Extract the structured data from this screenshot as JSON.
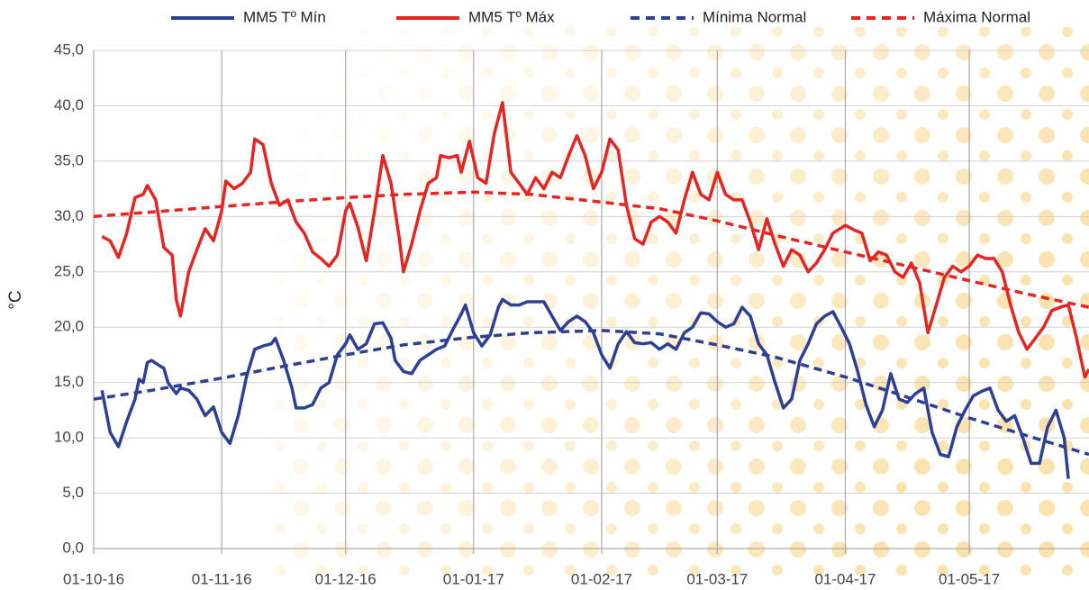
{
  "chart_data": {
    "type": "line",
    "y_label": "°C",
    "xlim": [
      "2016-10-01",
      "2017-05-30"
    ],
    "xticks": [
      {
        "value": "2016-10-01",
        "label": "01-10-16"
      },
      {
        "value": "2016-11-01",
        "label": "01-11-16"
      },
      {
        "value": "2016-12-01",
        "label": "01-12-16"
      },
      {
        "value": "2017-01-01",
        "label": "01-01-17"
      },
      {
        "value": "2017-02-01",
        "label": "01-02-17"
      },
      {
        "value": "2017-03-01",
        "label": "01-03-17"
      },
      {
        "value": "2017-04-01",
        "label": "01-04-17"
      },
      {
        "value": "2017-05-01",
        "label": "01-05-17"
      }
    ],
    "ylim": [
      0,
      45
    ],
    "yticks": [
      {
        "value": 0,
        "label": "0,0"
      },
      {
        "value": 5,
        "label": "5,0"
      },
      {
        "value": 10,
        "label": "10,0"
      },
      {
        "value": 15,
        "label": "15,0"
      },
      {
        "value": 20,
        "label": "20,0"
      },
      {
        "value": 25,
        "label": "25,0"
      },
      {
        "value": 30,
        "label": "30,0"
      },
      {
        "value": 35,
        "label": "35,0"
      },
      {
        "value": 40,
        "label": "40,0"
      },
      {
        "value": 45,
        "label": "45,0"
      }
    ],
    "grid": true,
    "legend": "top",
    "series": [
      {
        "name": "MM5 Tº Mín",
        "color": "#2e3f94",
        "dash": false,
        "x": [
          "2016-10-03",
          "2016-10-05",
          "2016-10-07",
          "2016-10-09",
          "2016-10-11",
          "2016-10-12",
          "2016-10-13",
          "2016-10-14",
          "2016-10-15",
          "2016-10-17",
          "2016-10-18",
          "2016-10-19",
          "2016-10-21",
          "2016-10-22",
          "2016-10-24",
          "2016-10-26",
          "2016-10-28",
          "2016-10-30",
          "2016-11-01",
          "2016-11-03",
          "2016-11-05",
          "2016-11-07",
          "2016-11-09",
          "2016-11-11",
          "2016-11-13",
          "2016-11-14",
          "2016-11-16",
          "2016-11-18",
          "2016-11-19",
          "2016-11-21",
          "2016-11-23",
          "2016-11-25",
          "2016-11-27",
          "2016-11-29",
          "2016-12-01",
          "2016-12-02",
          "2016-12-04",
          "2016-12-06",
          "2016-12-08",
          "2016-12-10",
          "2016-12-12",
          "2016-12-13",
          "2016-12-15",
          "2016-12-17",
          "2016-12-19",
          "2016-12-21",
          "2016-12-23",
          "2016-12-25",
          "2016-12-27",
          "2016-12-29",
          "2016-12-30",
          "2017-01-01",
          "2017-01-03",
          "2017-01-05",
          "2017-01-07",
          "2017-01-08",
          "2017-01-10",
          "2017-01-12",
          "2017-01-14",
          "2017-01-16",
          "2017-01-18",
          "2017-01-20",
          "2017-01-22",
          "2017-01-24",
          "2017-01-26",
          "2017-01-28",
          "2017-01-30",
          "2017-02-01",
          "2017-02-03",
          "2017-02-05",
          "2017-02-07",
          "2017-02-09",
          "2017-02-11",
          "2017-02-13",
          "2017-02-15",
          "2017-02-17",
          "2017-02-19",
          "2017-02-21",
          "2017-02-23",
          "2017-02-25",
          "2017-02-27",
          "2017-03-01",
          "2017-03-03",
          "2017-03-05",
          "2017-03-07",
          "2017-03-09",
          "2017-03-11",
          "2017-03-13",
          "2017-03-15",
          "2017-03-17",
          "2017-03-19",
          "2017-03-21",
          "2017-03-23",
          "2017-03-25",
          "2017-03-27",
          "2017-03-29",
          "2017-03-31",
          "2017-04-02",
          "2017-04-04",
          "2017-04-06",
          "2017-04-08",
          "2017-04-10",
          "2017-04-12",
          "2017-04-14",
          "2017-04-16",
          "2017-04-18",
          "2017-04-20",
          "2017-04-22",
          "2017-04-24",
          "2017-04-26",
          "2017-04-28",
          "2017-04-30",
          "2017-05-02",
          "2017-05-04",
          "2017-05-06",
          "2017-05-08",
          "2017-05-10",
          "2017-05-12",
          "2017-05-14",
          "2017-05-16",
          "2017-05-18",
          "2017-05-20",
          "2017-05-22",
          "2017-05-24",
          "2017-05-25"
        ],
        "values": [
          14.3,
          10.5,
          9.2,
          11.5,
          13.5,
          15.3,
          15,
          16.8,
          17,
          16.5,
          16.3,
          15,
          14,
          14.5,
          14.3,
          13.5,
          12,
          12.8,
          10.5,
          9.5,
          12,
          15.5,
          18,
          18.3,
          18.5,
          19,
          17,
          14.5,
          12.7,
          12.7,
          13,
          14.5,
          15,
          17.5,
          18.5,
          19.3,
          18,
          18.5,
          20.3,
          20.4,
          19,
          17,
          16,
          15.8,
          17,
          17.5,
          18,
          18.3,
          19.8,
          21.2,
          22,
          19.5,
          18.3,
          19.3,
          21.8,
          22.5,
          22,
          22,
          22.3,
          22.3,
          22.3,
          21,
          19.7,
          20.5,
          21,
          20.5,
          19.5,
          17.5,
          16.3,
          18.5,
          19.6,
          18.6,
          18.5,
          18.6,
          18,
          18.5,
          18,
          19.5,
          20,
          21.3,
          21.2,
          20.5,
          20,
          20.3,
          21.8,
          21,
          18.5,
          17.5,
          15,
          12.7,
          13.5,
          17,
          18.5,
          20.3,
          21,
          21.4,
          20,
          18.5,
          16,
          13,
          11,
          12.5,
          15.8,
          13.5,
          13.2,
          14,
          14.5,
          10.5,
          8.5,
          8.3,
          11,
          12.5,
          13.8,
          14.2,
          14.5,
          12.5,
          11.5,
          12,
          10,
          7.7,
          7.7,
          11,
          12.5,
          10,
          6.3
        ]
      },
      {
        "name": "MM5 Tº Máx",
        "color": "#e52521",
        "dash": false,
        "x": [
          "2016-10-03",
          "2016-10-05",
          "2016-10-07",
          "2016-10-09",
          "2016-10-11",
          "2016-10-13",
          "2016-10-14",
          "2016-10-16",
          "2016-10-18",
          "2016-10-20",
          "2016-10-21",
          "2016-10-22",
          "2016-10-24",
          "2016-10-26",
          "2016-10-28",
          "2016-10-30",
          "2016-11-01",
          "2016-11-02",
          "2016-11-04",
          "2016-11-06",
          "2016-11-08",
          "2016-11-09",
          "2016-11-11",
          "2016-11-13",
          "2016-11-15",
          "2016-11-17",
          "2016-11-19",
          "2016-11-21",
          "2016-11-23",
          "2016-11-25",
          "2016-11-27",
          "2016-11-29",
          "2016-12-01",
          "2016-12-02",
          "2016-12-04",
          "2016-12-06",
          "2016-12-08",
          "2016-12-10",
          "2016-12-12",
          "2016-12-14",
          "2016-12-15",
          "2016-12-17",
          "2016-12-19",
          "2016-12-21",
          "2016-12-23",
          "2016-12-24",
          "2016-12-26",
          "2016-12-28",
          "2016-12-29",
          "2016-12-31",
          "2017-01-02",
          "2017-01-04",
          "2017-01-06",
          "2017-01-08",
          "2017-01-10",
          "2017-01-12",
          "2017-01-14",
          "2017-01-16",
          "2017-01-18",
          "2017-01-20",
          "2017-01-22",
          "2017-01-24",
          "2017-01-26",
          "2017-01-28",
          "2017-01-30",
          "2017-02-01",
          "2017-02-03",
          "2017-02-05",
          "2017-02-07",
          "2017-02-09",
          "2017-02-11",
          "2017-02-13",
          "2017-02-15",
          "2017-02-17",
          "2017-02-19",
          "2017-02-21",
          "2017-02-23",
          "2017-02-25",
          "2017-02-27",
          "2017-03-01",
          "2017-03-03",
          "2017-03-05",
          "2017-03-07",
          "2017-03-09",
          "2017-03-11",
          "2017-03-13",
          "2017-03-15",
          "2017-03-17",
          "2017-03-19",
          "2017-03-21",
          "2017-03-23",
          "2017-03-25",
          "2017-03-27",
          "2017-03-29",
          "2017-04-01",
          "2017-04-03",
          "2017-04-05",
          "2017-04-07",
          "2017-04-09",
          "2017-04-11",
          "2017-04-13",
          "2017-04-15",
          "2017-04-17",
          "2017-04-19",
          "2017-04-21",
          "2017-04-23",
          "2017-04-25",
          "2017-04-27",
          "2017-04-29",
          "2017-05-01",
          "2017-05-03",
          "2017-05-05",
          "2017-05-07",
          "2017-05-09",
          "2017-05-11",
          "2017-05-13",
          "2017-05-15",
          "2017-05-17",
          "2017-05-19",
          "2017-05-21",
          "2017-05-23",
          "2017-05-25",
          "2017-05-27",
          "2017-05-29",
          "2017-05-30"
        ],
        "values": [
          28.2,
          27.8,
          26.3,
          28.5,
          31.7,
          32,
          32.8,
          31.5,
          27.2,
          26.5,
          22.5,
          21,
          25,
          27,
          28.9,
          27.8,
          30.5,
          33.2,
          32.5,
          33,
          34,
          37,
          36.5,
          33,
          31,
          31.5,
          29.5,
          28.5,
          26.8,
          26.2,
          25.5,
          26.5,
          30.5,
          31.2,
          29,
          26,
          30.5,
          35.5,
          33,
          28,
          25,
          27.5,
          30.5,
          33,
          33.5,
          35.5,
          35.3,
          35.5,
          34,
          36.8,
          33.5,
          33,
          37.5,
          40.3,
          34,
          33,
          32,
          33.5,
          32.5,
          34,
          33.5,
          35.5,
          37.3,
          35.5,
          32.5,
          34,
          37,
          36,
          31,
          28,
          27.5,
          29.5,
          30,
          29.5,
          28.5,
          31.5,
          34,
          32,
          31.5,
          34,
          32,
          31.5,
          31.5,
          29.5,
          27,
          29.8,
          27.5,
          25.5,
          27,
          26.5,
          25,
          25.8,
          27,
          28.5,
          29.2,
          28.8,
          28.5,
          26,
          26.8,
          26.5,
          25,
          24.5,
          25.8,
          24,
          19.5,
          22,
          24.5,
          25.5,
          25,
          25.5,
          26.5,
          26.2,
          26.2,
          25,
          22,
          19.5,
          18,
          19,
          20,
          21.5,
          21.8,
          22,
          19,
          15.5,
          16.2
        ]
      },
      {
        "name": "Mínima Normal",
        "color": "#2e3f94",
        "dash": true,
        "x": [
          "2016-10-01",
          "2016-10-15",
          "2016-11-01",
          "2016-11-15",
          "2016-12-01",
          "2016-12-15",
          "2017-01-01",
          "2017-01-15",
          "2017-02-01",
          "2017-02-15",
          "2017-03-01",
          "2017-03-15",
          "2017-04-01",
          "2017-04-15",
          "2017-05-01",
          "2017-05-15",
          "2017-05-30"
        ],
        "values": [
          13.5,
          14.3,
          15.4,
          16.4,
          17.5,
          18.4,
          19.1,
          19.5,
          19.7,
          19.4,
          18.4,
          17.3,
          15.5,
          13.8,
          11.8,
          10.2,
          8.5
        ]
      },
      {
        "name": "Máxima Normal",
        "color": "#e52521",
        "dash": true,
        "x": [
          "2016-10-01",
          "2016-10-15",
          "2016-11-01",
          "2016-11-15",
          "2016-12-01",
          "2016-12-15",
          "2017-01-01",
          "2017-01-15",
          "2017-02-01",
          "2017-02-15",
          "2017-03-01",
          "2017-03-15",
          "2017-04-01",
          "2017-04-15",
          "2017-05-01",
          "2017-05-15",
          "2017-05-30"
        ],
        "values": [
          30,
          30.4,
          30.9,
          31.3,
          31.7,
          32,
          32.2,
          32,
          31.3,
          30.7,
          29.6,
          28.3,
          26.8,
          25.6,
          24.2,
          23,
          21.8
        ]
      }
    ]
  }
}
